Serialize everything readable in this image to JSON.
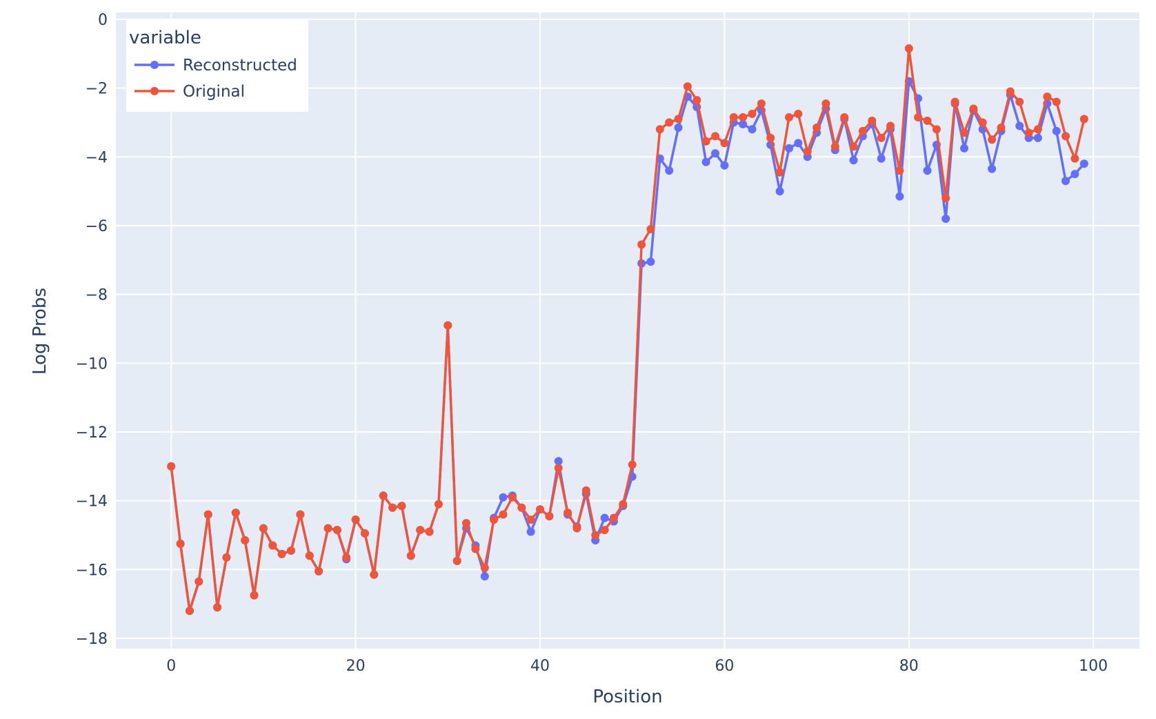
{
  "chart_data": {
    "type": "line",
    "xlabel": "Position",
    "ylabel": "Log Probs",
    "xlim": [
      -6,
      105
    ],
    "ylim": [
      -18.3,
      0.2
    ],
    "xticks": [
      0,
      20,
      40,
      60,
      80,
      100
    ],
    "yticks": [
      0,
      -2,
      -4,
      -6,
      -8,
      -10,
      -12,
      -14,
      -16,
      -18
    ],
    "grid": true,
    "legend": {
      "title": "variable",
      "position": "top-left"
    },
    "colors": {
      "plot_bg": "#e5ecf6",
      "grid": "#ffffff",
      "text": "#2a3f5f"
    },
    "x": [
      0,
      1,
      2,
      3,
      4,
      5,
      6,
      7,
      8,
      9,
      10,
      11,
      12,
      13,
      14,
      15,
      16,
      17,
      18,
      19,
      20,
      21,
      22,
      23,
      24,
      25,
      26,
      27,
      28,
      29,
      30,
      31,
      32,
      33,
      34,
      35,
      36,
      37,
      38,
      39,
      40,
      41,
      42,
      43,
      44,
      45,
      46,
      47,
      48,
      49,
      50,
      51,
      52,
      53,
      54,
      55,
      56,
      57,
      58,
      59,
      60,
      61,
      62,
      63,
      64,
      65,
      66,
      67,
      68,
      69,
      70,
      71,
      72,
      73,
      74,
      75,
      76,
      77,
      78,
      79,
      80,
      81,
      82,
      83,
      84,
      85,
      86,
      87,
      88,
      89,
      90,
      91,
      92,
      93,
      94,
      95,
      96,
      97,
      98,
      99
    ],
    "series": [
      {
        "name": "Reconstructed",
        "color": "#636efa",
        "values": [
          -13.0,
          -15.25,
          -17.2,
          -16.35,
          -14.4,
          -17.1,
          -15.65,
          -14.35,
          -15.15,
          -16.75,
          -14.8,
          -15.3,
          -15.55,
          -15.45,
          -14.4,
          -15.6,
          -16.05,
          -14.8,
          -14.85,
          -15.7,
          -14.55,
          -14.95,
          -16.15,
          -13.85,
          -14.2,
          -14.15,
          -15.6,
          -14.85,
          -14.9,
          -14.1,
          -8.9,
          -15.75,
          -14.8,
          -15.3,
          -16.2,
          -14.5,
          -13.9,
          -13.85,
          -14.2,
          -14.9,
          -14.25,
          -14.45,
          -12.85,
          -14.4,
          -14.75,
          -13.8,
          -15.15,
          -14.5,
          -14.6,
          -14.15,
          -13.3,
          -7.1,
          -7.05,
          -4.05,
          -4.4,
          -3.15,
          -2.25,
          -2.55,
          -4.15,
          -3.9,
          -4.25,
          -3.0,
          -3.05,
          -3.2,
          -2.65,
          -3.65,
          -5.0,
          -3.75,
          -3.6,
          -4.0,
          -3.3,
          -2.6,
          -3.8,
          -2.9,
          -4.1,
          -3.4,
          -3.05,
          -4.05,
          -3.2,
          -5.15,
          -1.8,
          -2.3,
          -4.4,
          -3.65,
          -5.8,
          -2.45,
          -3.75,
          -2.65,
          -3.2,
          -4.35,
          -3.25,
          -2.2,
          -3.1,
          -3.45,
          -3.45,
          -2.45,
          -3.25,
          -4.7,
          -4.5,
          -4.2
        ]
      },
      {
        "name": "Original",
        "color": "#ef553b",
        "values": [
          -13.0,
          -15.25,
          -17.2,
          -16.35,
          -14.4,
          -17.1,
          -15.65,
          -14.35,
          -15.15,
          -16.75,
          -14.8,
          -15.3,
          -15.55,
          -15.45,
          -14.4,
          -15.6,
          -16.05,
          -14.8,
          -14.85,
          -15.65,
          -14.55,
          -14.95,
          -16.15,
          -13.85,
          -14.2,
          -14.15,
          -15.6,
          -14.85,
          -14.9,
          -14.1,
          -8.9,
          -15.75,
          -14.65,
          -15.4,
          -15.95,
          -14.55,
          -14.4,
          -13.9,
          -14.2,
          -14.55,
          -14.25,
          -14.45,
          -13.05,
          -14.35,
          -14.8,
          -13.7,
          -15.0,
          -14.85,
          -14.5,
          -14.1,
          -12.95,
          -6.55,
          -6.1,
          -3.2,
          -3.0,
          -2.9,
          -1.95,
          -2.35,
          -3.55,
          -3.4,
          -3.6,
          -2.85,
          -2.85,
          -2.75,
          -2.45,
          -3.45,
          -4.45,
          -2.85,
          -2.75,
          -3.85,
          -3.15,
          -2.45,
          -3.7,
          -2.85,
          -3.7,
          -3.25,
          -2.95,
          -3.45,
          -3.1,
          -4.4,
          -0.85,
          -2.85,
          -2.95,
          -3.2,
          -5.2,
          -2.4,
          -3.3,
          -2.6,
          -3.0,
          -3.5,
          -3.15,
          -2.1,
          -2.4,
          -3.3,
          -3.2,
          -2.25,
          -2.4,
          -3.4,
          -4.05,
          -2.9
        ]
      }
    ]
  }
}
